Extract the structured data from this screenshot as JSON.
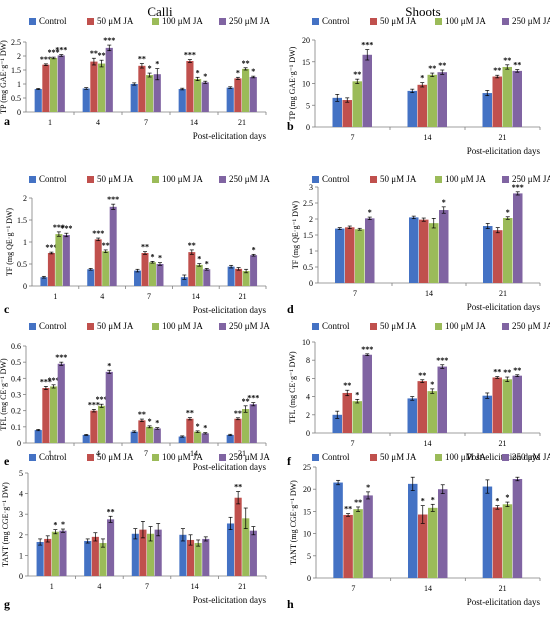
{
  "header": {
    "left": "Calli",
    "right": "Shoots"
  },
  "colors": {
    "control": "#4472c4",
    "ja50": "#c0504d",
    "ja100": "#9bbb59",
    "ja250": "#8064a2",
    "axis": "#7f7f7f",
    "error": "#000000"
  },
  "chart_data": [
    {
      "type": "bar",
      "panel": "a",
      "column": "Calli",
      "categories": [
        "1",
        "4",
        "7",
        "14",
        "21"
      ],
      "xlabel": "Post-elicitation days",
      "ylabel": "TP (mg GAE·g⁻¹ DW)",
      "ylim": [
        0,
        2.5
      ],
      "yticks": [
        "0",
        "0.5",
        "1",
        "1.5",
        "2",
        "2.5"
      ],
      "legend": "top",
      "series": [
        {
          "name": "Control",
          "values": [
            0.82,
            0.84,
            1.0,
            0.82,
            0.87
          ],
          "errors": [
            0.02,
            0.03,
            0.04,
            0.03,
            0.03
          ],
          "stars": [
            "",
            "",
            "",
            "",
            ""
          ]
        },
        {
          "name": "50 μM JA",
          "values": [
            1.69,
            1.8,
            1.65,
            1.82,
            1.2
          ],
          "errors": [
            0.03,
            0.12,
            0.08,
            0.05,
            0.04
          ],
          "stars": [
            "***",
            "**",
            "**",
            "***",
            "*"
          ]
        },
        {
          "name": "100 μM JA",
          "values": [
            1.93,
            1.73,
            1.32,
            1.18,
            1.54
          ],
          "errors": [
            0.03,
            0.12,
            0.07,
            0.06,
            0.04
          ],
          "stars": [
            "***",
            "**",
            "*",
            "*",
            "**"
          ]
        },
        {
          "name": "250 μM JA",
          "values": [
            2.02,
            2.29,
            1.35,
            1.06,
            1.25
          ],
          "errors": [
            0.03,
            0.1,
            0.2,
            0.04,
            0.03
          ],
          "stars": [
            "***",
            "***",
            "*",
            "*",
            "*"
          ]
        }
      ]
    },
    {
      "type": "bar",
      "panel": "b",
      "column": "Shoots",
      "categories": [
        "7",
        "14",
        "21"
      ],
      "xlabel": "Post-elicitation days",
      "ylabel": "TP (mg GAE·g⁻¹ DW)",
      "ylim": [
        0,
        20
      ],
      "yticks": [
        "0",
        "5",
        "10",
        "15",
        "20"
      ],
      "legend": "top",
      "series": [
        {
          "name": "Control",
          "values": [
            6.7,
            8.3,
            7.8
          ],
          "errors": [
            0.8,
            0.4,
            0.6
          ],
          "stars": [
            "",
            "",
            ""
          ]
        },
        {
          "name": "50 μM JA",
          "values": [
            6.2,
            9.7,
            11.6
          ],
          "errors": [
            0.5,
            0.5,
            0.3
          ],
          "stars": [
            "",
            "*",
            "**"
          ]
        },
        {
          "name": "100 μM JA",
          "values": [
            10.5,
            12.0,
            13.8
          ],
          "errors": [
            0.5,
            0.4,
            0.5
          ],
          "stars": [
            "**",
            "**",
            "**"
          ]
        },
        {
          "name": "250 μM JA",
          "values": [
            16.6,
            12.6,
            12.9
          ],
          "errors": [
            1.2,
            0.5,
            0.3
          ],
          "stars": [
            "***",
            "**",
            "**"
          ]
        }
      ]
    },
    {
      "type": "bar",
      "panel": "c",
      "column": "Calli",
      "categories": [
        "1",
        "4",
        "7",
        "14",
        "21"
      ],
      "xlabel": "Post-elicitation days",
      "ylabel": "TF (mg QE·g⁻¹ DW)",
      "ylim": [
        0,
        2
      ],
      "yticks": [
        "0",
        "0.5",
        "1",
        "1.5",
        "2"
      ],
      "legend": "top",
      "series": [
        {
          "name": "Control",
          "values": [
            0.2,
            0.38,
            0.35,
            0.2,
            0.44
          ],
          "errors": [
            0.02,
            0.02,
            0.03,
            0.05,
            0.03
          ],
          "stars": [
            "",
            "",
            "",
            "",
            ""
          ]
        },
        {
          "name": "50 μM JA",
          "values": [
            0.75,
            1.06,
            0.75,
            0.77,
            0.39
          ],
          "errors": [
            0.02,
            0.03,
            0.03,
            0.05,
            0.03
          ],
          "stars": [
            "***",
            "***",
            "**",
            "**",
            ""
          ]
        },
        {
          "name": "100 μM JA",
          "values": [
            1.18,
            0.79,
            0.54,
            0.48,
            0.34
          ],
          "errors": [
            0.05,
            0.03,
            0.02,
            0.03,
            0.04
          ],
          "stars": [
            "***",
            "**",
            "*",
            "*",
            ""
          ]
        },
        {
          "name": "250 μM JA",
          "values": [
            1.16,
            1.8,
            0.5,
            0.38,
            0.7
          ],
          "errors": [
            0.04,
            0.06,
            0.03,
            0.02,
            0.02
          ],
          "stars": [
            "***",
            "***",
            "*",
            "*",
            "*"
          ]
        }
      ]
    },
    {
      "type": "bar",
      "panel": "d",
      "column": "Shoots",
      "categories": [
        "7",
        "14",
        "21"
      ],
      "xlabel": "Post-elicitation days",
      "ylabel": "TF (mg QE·g⁻¹ DW)",
      "ylim": [
        0,
        3
      ],
      "yticks": [
        "0",
        "0.5",
        "1",
        "1.5",
        "2",
        "2.5",
        "3"
      ],
      "legend": "top",
      "series": [
        {
          "name": "Control",
          "values": [
            1.7,
            2.05,
            1.78
          ],
          "errors": [
            0.03,
            0.04,
            0.08
          ],
          "stars": [
            "",
            "",
            ""
          ]
        },
        {
          "name": "50 μM JA",
          "values": [
            1.74,
            1.98,
            1.65
          ],
          "errors": [
            0.04,
            0.05,
            0.08
          ],
          "stars": [
            "",
            "",
            ""
          ]
        },
        {
          "name": "100 μM JA",
          "values": [
            1.68,
            1.87,
            2.03
          ],
          "errors": [
            0.03,
            0.15,
            0.04
          ],
          "stars": [
            "",
            "",
            "*"
          ]
        },
        {
          "name": "250 μM JA",
          "values": [
            2.02,
            2.28,
            2.8
          ],
          "errors": [
            0.04,
            0.1,
            0.05
          ],
          "stars": [
            "*",
            "*",
            "***"
          ]
        }
      ]
    },
    {
      "type": "bar",
      "panel": "e",
      "column": "Calli",
      "categories": [
        "1",
        "4",
        "7",
        "14",
        "21"
      ],
      "xlabel": "Post-elicitation days",
      "ylabel": "TFL (mg CE·g⁻¹ DW)",
      "ylim": [
        0,
        0.6
      ],
      "yticks": [
        "0",
        "0.1",
        "0.2",
        "0.3",
        "0.4",
        "0.5",
        "0.6"
      ],
      "legend": "top",
      "series": [
        {
          "name": "Control",
          "values": [
            0.08,
            0.05,
            0.07,
            0.04,
            0.05
          ],
          "errors": [
            0.004,
            0.003,
            0.005,
            0.004,
            0.004
          ],
          "stars": [
            "",
            "",
            "",
            "",
            ""
          ]
        },
        {
          "name": "50 μM JA",
          "values": [
            0.34,
            0.2,
            0.14,
            0.15,
            0.15
          ],
          "errors": [
            0.01,
            0.008,
            0.008,
            0.007,
            0.006
          ],
          "stars": [
            "***",
            "***",
            "**",
            "**",
            "**"
          ]
        },
        {
          "name": "100 μM JA",
          "values": [
            0.35,
            0.23,
            0.1,
            0.07,
            0.21
          ],
          "errors": [
            0.01,
            0.01,
            0.006,
            0.005,
            0.02
          ],
          "stars": [
            "***",
            "***",
            "*",
            "*",
            "**"
          ]
        },
        {
          "name": "250 μM JA",
          "values": [
            0.49,
            0.44,
            0.09,
            0.06,
            0.24
          ],
          "errors": [
            0.01,
            0.01,
            0.005,
            0.004,
            0.01
          ],
          "stars": [
            "***",
            "*",
            "*",
            "*",
            "***"
          ]
        }
      ]
    },
    {
      "type": "bar",
      "panel": "f",
      "column": "Shoots",
      "categories": [
        "7",
        "14",
        "21"
      ],
      "xlabel": "Post-elicitation days",
      "ylabel": "TFL (mg CE·g⁻¹ DW)",
      "ylim": [
        0,
        10
      ],
      "yticks": [
        "0",
        "2",
        "4",
        "6",
        "8",
        "10"
      ],
      "legend": "top",
      "series": [
        {
          "name": "Control",
          "values": [
            2.0,
            3.8,
            4.1
          ],
          "errors": [
            0.4,
            0.2,
            0.3
          ],
          "stars": [
            "",
            "",
            ""
          ]
        },
        {
          "name": "50 μM JA",
          "values": [
            4.4,
            5.7,
            6.1
          ],
          "errors": [
            0.3,
            0.15,
            0.1
          ],
          "stars": [
            "**",
            "**",
            "**"
          ]
        },
        {
          "name": "100 μM JA",
          "values": [
            3.5,
            4.6,
            5.9
          ],
          "errors": [
            0.2,
            0.25,
            0.25
          ],
          "stars": [
            "*",
            "*",
            "**"
          ]
        },
        {
          "name": "250 μM JA",
          "values": [
            8.6,
            7.3,
            6.3
          ],
          "errors": [
            0.1,
            0.2,
            0.1
          ],
          "stars": [
            "***",
            "***",
            "**"
          ]
        }
      ]
    },
    {
      "type": "bar",
      "panel": "g",
      "column": "Calli",
      "categories": [
        "1",
        "4",
        "7",
        "14",
        "21"
      ],
      "xlabel": "Post-elicitation days",
      "ylabel": "TANT (mg CGE·g⁻¹ DW)",
      "ylim": [
        0,
        5
      ],
      "yticks": [
        "0",
        "1",
        "2",
        "3",
        "4",
        "5"
      ],
      "legend": "top",
      "series": [
        {
          "name": "Control",
          "values": [
            1.65,
            1.7,
            2.05,
            2.0,
            2.55
          ],
          "errors": [
            0.15,
            0.1,
            0.25,
            0.3,
            0.3
          ],
          "stars": [
            "",
            "",
            "",
            "",
            ""
          ]
        },
        {
          "name": "50 μM JA",
          "values": [
            1.8,
            1.9,
            2.25,
            1.75,
            3.8
          ],
          "errors": [
            0.15,
            0.2,
            0.4,
            0.25,
            0.3
          ],
          "stars": [
            "",
            "",
            "",
            "",
            "**"
          ]
        },
        {
          "name": "100 μM JA",
          "values": [
            2.15,
            1.6,
            2.05,
            1.6,
            2.8
          ],
          "errors": [
            0.1,
            0.2,
            0.35,
            0.15,
            0.5
          ],
          "stars": [
            "*",
            "",
            "",
            "",
            ""
          ]
        },
        {
          "name": "250 μM JA",
          "values": [
            2.2,
            2.75,
            2.25,
            1.8,
            2.2
          ],
          "errors": [
            0.08,
            0.15,
            0.3,
            0.1,
            0.2
          ],
          "stars": [
            "*",
            "**",
            "",
            "",
            ""
          ]
        }
      ]
    },
    {
      "type": "bar",
      "panel": "h",
      "column": "Shoots",
      "categories": [
        "7",
        "14",
        "21"
      ],
      "xlabel": "Post-elicitation days",
      "ylabel": "TANT (mg CGE·g⁻¹ DW)",
      "ylim": [
        0,
        25
      ],
      "yticks": [
        "0",
        "5",
        "10",
        "15",
        "20",
        "25"
      ],
      "legend": "top",
      "series": [
        {
          "name": "Control",
          "values": [
            21.5,
            21.2,
            20.6
          ],
          "errors": [
            0.5,
            1.5,
            1.5
          ],
          "stars": [
            "",
            "",
            ""
          ]
        },
        {
          "name": "50 μM JA",
          "values": [
            14.2,
            14.3,
            15.9
          ],
          "errors": [
            0.3,
            2.0,
            0.4
          ],
          "stars": [
            "**",
            "*",
            "*"
          ]
        },
        {
          "name": "100 μM JA",
          "values": [
            15.5,
            15.8,
            16.6
          ],
          "errors": [
            0.5,
            0.8,
            0.5
          ],
          "stars": [
            "**",
            "*",
            "*"
          ]
        },
        {
          "name": "250 μM JA",
          "values": [
            18.6,
            20.0,
            22.3
          ],
          "errors": [
            0.8,
            1.0,
            0.4
          ],
          "stars": [
            "*",
            "",
            ""
          ]
        }
      ]
    }
  ]
}
